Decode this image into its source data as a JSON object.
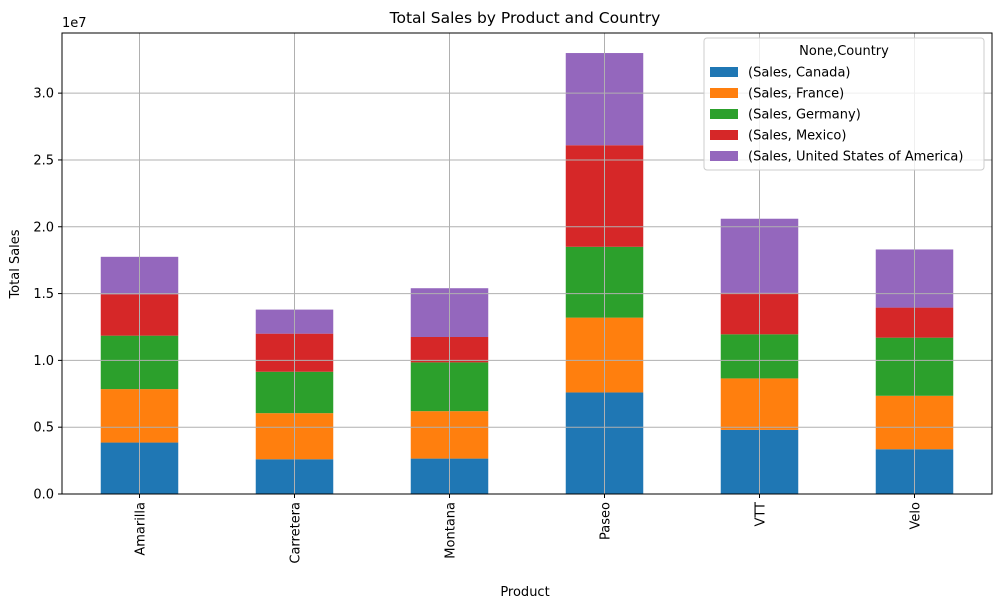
{
  "chart_data": {
    "type": "bar",
    "stacked": true,
    "title": "Total Sales by Product and Country",
    "xlabel": "Product",
    "ylabel": "Total Sales",
    "y_offset_text": "1e7",
    "y_scale": 10000000,
    "ylim": [
      0,
      34500000
    ],
    "y_ticks": [
      0,
      5000000,
      10000000,
      15000000,
      20000000,
      25000000,
      30000000
    ],
    "y_tick_labels": [
      "0.0",
      "0.5",
      "1.0",
      "1.5",
      "2.0",
      "2.5",
      "3.0"
    ],
    "grid": true,
    "legend_title": "None,Country",
    "legend_position": "top-right",
    "categories": [
      "Amarilla",
      "Carretera",
      "Montana",
      "Paseo",
      "VTT",
      "Velo"
    ],
    "series": [
      {
        "name": "(Sales, Canada)",
        "color": "#1f77b4",
        "values": [
          3850000,
          2600000,
          2650000,
          7600000,
          4800000,
          3350000
        ]
      },
      {
        "name": "(Sales, France)",
        "color": "#ff7f0e",
        "values": [
          4000000,
          3450000,
          3550000,
          5600000,
          3850000,
          4000000
        ]
      },
      {
        "name": "(Sales, Germany)",
        "color": "#2ca02c",
        "values": [
          4000000,
          3100000,
          3650000,
          5300000,
          3300000,
          4350000
        ]
      },
      {
        "name": "(Sales, Mexico)",
        "color": "#d62728",
        "values": [
          3100000,
          2850000,
          1900000,
          7600000,
          3100000,
          2250000
        ]
      },
      {
        "name": "(Sales, United States of America)",
        "color": "#9467bd",
        "values": [
          2800000,
          1800000,
          3650000,
          6900000,
          5550000,
          4350000
        ]
      }
    ]
  }
}
